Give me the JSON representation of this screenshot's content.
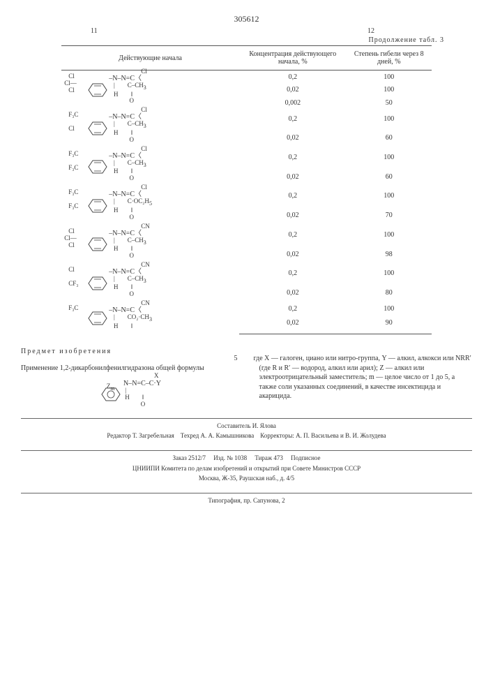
{
  "doc_number": "305612",
  "left_page": "11",
  "right_page": "12",
  "continuation": "Продолжение табл. 3",
  "table": {
    "headers": [
      "Действующие начала",
      "Концентрация действующего начала, %",
      "Степень гибели через 8 дней, %"
    ],
    "rows": [
      {
        "struct": {
          "ring_subs": [
            "Cl",
            "Cl",
            "Cl"
          ],
          "x": "Cl",
          "y": "C–CH",
          "y3": "3",
          "under": "O"
        },
        "vals": [
          [
            "0,2",
            "100"
          ],
          [
            "0,02",
            "100"
          ],
          [
            "0,002",
            "50"
          ]
        ]
      },
      {
        "struct": {
          "ring_subs": [
            "F₃C",
            "",
            "Cl"
          ],
          "x": "Cl",
          "y": "C–CH",
          "y3": "3",
          "under": "O",
          "h_below": true
        },
        "vals": [
          [
            "0,2",
            "100"
          ],
          [
            "0,02",
            "60"
          ]
        ]
      },
      {
        "struct": {
          "ring_subs": [
            "F₃C",
            "",
            "F₃C"
          ],
          "x": "Cl",
          "y": "C–CH",
          "y3": "3",
          "under": "O"
        },
        "vals": [
          [
            "0,2",
            "100"
          ],
          [
            "0,02",
            "60"
          ]
        ]
      },
      {
        "struct": {
          "ring_subs": [
            "F₃C",
            "",
            "F₃C"
          ],
          "x": "Cl",
          "y": "C·OC₂H",
          "y3": "5",
          "under": "O"
        },
        "vals": [
          [
            "0,2",
            "100"
          ],
          [
            "0,02",
            "70"
          ]
        ]
      },
      {
        "struct": {
          "ring_subs": [
            "Cl",
            "Cl",
            "Cl"
          ],
          "x": "CN",
          "y": "C–CH",
          "y3": "3",
          "under": "O"
        },
        "vals": [
          [
            "0,2",
            "100"
          ],
          [
            "0,02",
            "98"
          ]
        ]
      },
      {
        "struct": {
          "ring_subs": [
            "Cl",
            "",
            "CF₃"
          ],
          "x": "CN",
          "y": "C–CH",
          "y3": "3",
          "under": "O"
        },
        "vals": [
          [
            "0,2",
            "100"
          ],
          [
            "0,02",
            "80"
          ]
        ]
      },
      {
        "struct": {
          "ring_subs": [
            "F₃C",
            "",
            ""
          ],
          "x": "CN",
          "y": "CO₂·CH",
          "y3": "3",
          "under": ""
        },
        "vals": [
          [
            "0,2",
            "100"
          ],
          [
            "0,02",
            "90"
          ]
        ]
      }
    ]
  },
  "subject_heading": "Предмет изобретения",
  "left_text_1": "Применение 1,2-дикарбонилфенилгидразона общей формулы",
  "formula": {
    "z": "Z",
    "m": "m",
    "body": "N–N=C–C·Y",
    "h": "H",
    "x": "X",
    "o": "O"
  },
  "right_text": "где X — галоген, циано или нитро-группа, Y — алкил, алкокси или NRR′ (где R и R′ — водород, алкил или арил); Z — алкил или электроотрицательный заместитель; m — целое число от 1 до 5, а также соли указанных соединений, в качестве инсектицида и акарицида.",
  "line_num": "5",
  "footer": {
    "compiler": "Составитель И. Ялова",
    "editor": "Редактор Т. Загребельная",
    "tech": "Техред А. А. Камышникова",
    "corr": "Корректоры: А. П. Васильева и В. И. Жолудева",
    "order": "Заказ 2512/7",
    "izd": "Изд. № 1038",
    "tiraj": "Тираж 473",
    "sign": "Подписное",
    "org": "ЦНИИПИ Комитета по делам изобретений и открытий при Совете Министров СССР",
    "addr": "Москва, Ж-35, Раушская наб., д. 4/5",
    "typ": "Типография, пр. Сапунова, 2"
  }
}
